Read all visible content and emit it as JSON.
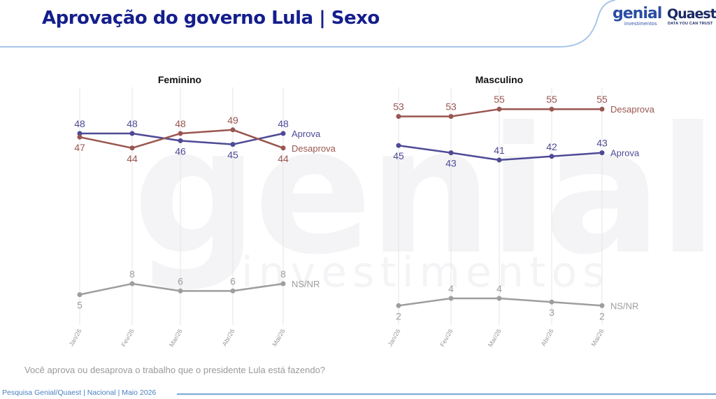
{
  "header": {
    "title": "Aprovação do governo Lula | Sexo",
    "logo_genial": "genial",
    "logo_genial_sub": "investimentos",
    "logo_quaest": "Quaest",
    "logo_quaest_sub": "DATA YOU CAN TRUST"
  },
  "watermark": {
    "line1": "genial",
    "line2": "investimentos"
  },
  "question": "Você aprova ou desaprova o trabalho que o presidente Lula está fazendo?",
  "footer": "Pesquisa Genial/Quaest | Nacional | Maio 2026",
  "colors": {
    "aprova": "#4e4a96",
    "desaprova": "#9a5650",
    "nsnr": "#9e9e9e",
    "title": "#141e8c",
    "gridline": "#e4e4e4"
  },
  "chart_data": [
    {
      "type": "line",
      "title": "Feminino",
      "x": [
        "Jan/26",
        "Fev/26",
        "Mar/26",
        "Abr/26",
        "Mai/26"
      ],
      "series": [
        {
          "name": "Aprova",
          "values": [
            48,
            48,
            46,
            45,
            48
          ],
          "color": "#4e4a96"
        },
        {
          "name": "Desaprova",
          "values": [
            47,
            44,
            48,
            49,
            44
          ],
          "color": "#9a5650"
        },
        {
          "name": "NS/NR",
          "values": [
            5,
            8,
            6,
            6,
            8
          ],
          "color": "#9e9e9e"
        }
      ],
      "legend": "series labels at right end of lines",
      "grid": "vertical only"
    },
    {
      "type": "line",
      "title": "Masculino",
      "x": [
        "Jan/26",
        "Fev/26",
        "Mar/26",
        "Abr/26",
        "Mai/26"
      ],
      "series": [
        {
          "name": "Desaprova",
          "values": [
            53,
            53,
            55,
            55,
            55
          ],
          "color": "#9a5650"
        },
        {
          "name": "Aprova",
          "values": [
            45,
            43,
            41,
            42,
            43
          ],
          "color": "#4e4a96"
        },
        {
          "name": "NS/NR",
          "values": [
            2,
            4,
            4,
            3,
            2
          ],
          "color": "#9e9e9e"
        }
      ],
      "legend": "series labels at right end of lines",
      "grid": "vertical only"
    }
  ]
}
